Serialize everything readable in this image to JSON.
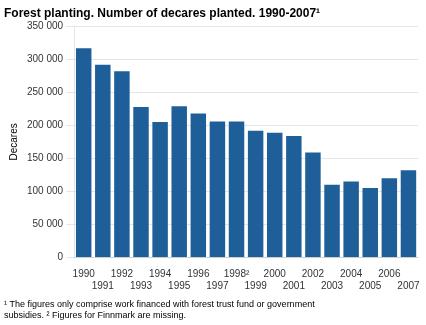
{
  "chart_data": {
    "type": "bar",
    "title": "Forest planting. Number of decares planted. 1990-2007¹",
    "ylabel": "Decares",
    "annotations": [
      "¹ The figures only comprise work financed with forest trust fund or government\nsubsidies. ² Figures for Finnmark are missing."
    ],
    "categories": [
      "1990",
      "1991",
      "1992",
      "1993",
      "1994",
      "1995",
      "1996",
      "1997",
      "1998²",
      "1999",
      "2000",
      "2001",
      "2002",
      "2003",
      "2004",
      "2005",
      "2006",
      "2007"
    ],
    "values": [
      317000,
      292000,
      282000,
      228000,
      205000,
      229000,
      218000,
      206000,
      206000,
      192000,
      189000,
      184000,
      159000,
      110000,
      115000,
      105000,
      120000,
      132000
    ],
    "color": "#1f5f99",
    "ylim": [
      0,
      350000
    ],
    "yticks": [
      0,
      {
        "value": 50000,
        "label": "50 000"
      },
      {
        "value": 100000,
        "label": "100 000"
      },
      {
        "value": 150000,
        "label": "150 000"
      },
      {
        "value": 200000,
        "label": "200 000"
      },
      {
        "value": 250000,
        "label": "250 000"
      },
      {
        "value": 300000,
        "label": "300 000"
      },
      {
        "value": 350000,
        "label": "350 000"
      }
    ],
    "grid": true
  }
}
